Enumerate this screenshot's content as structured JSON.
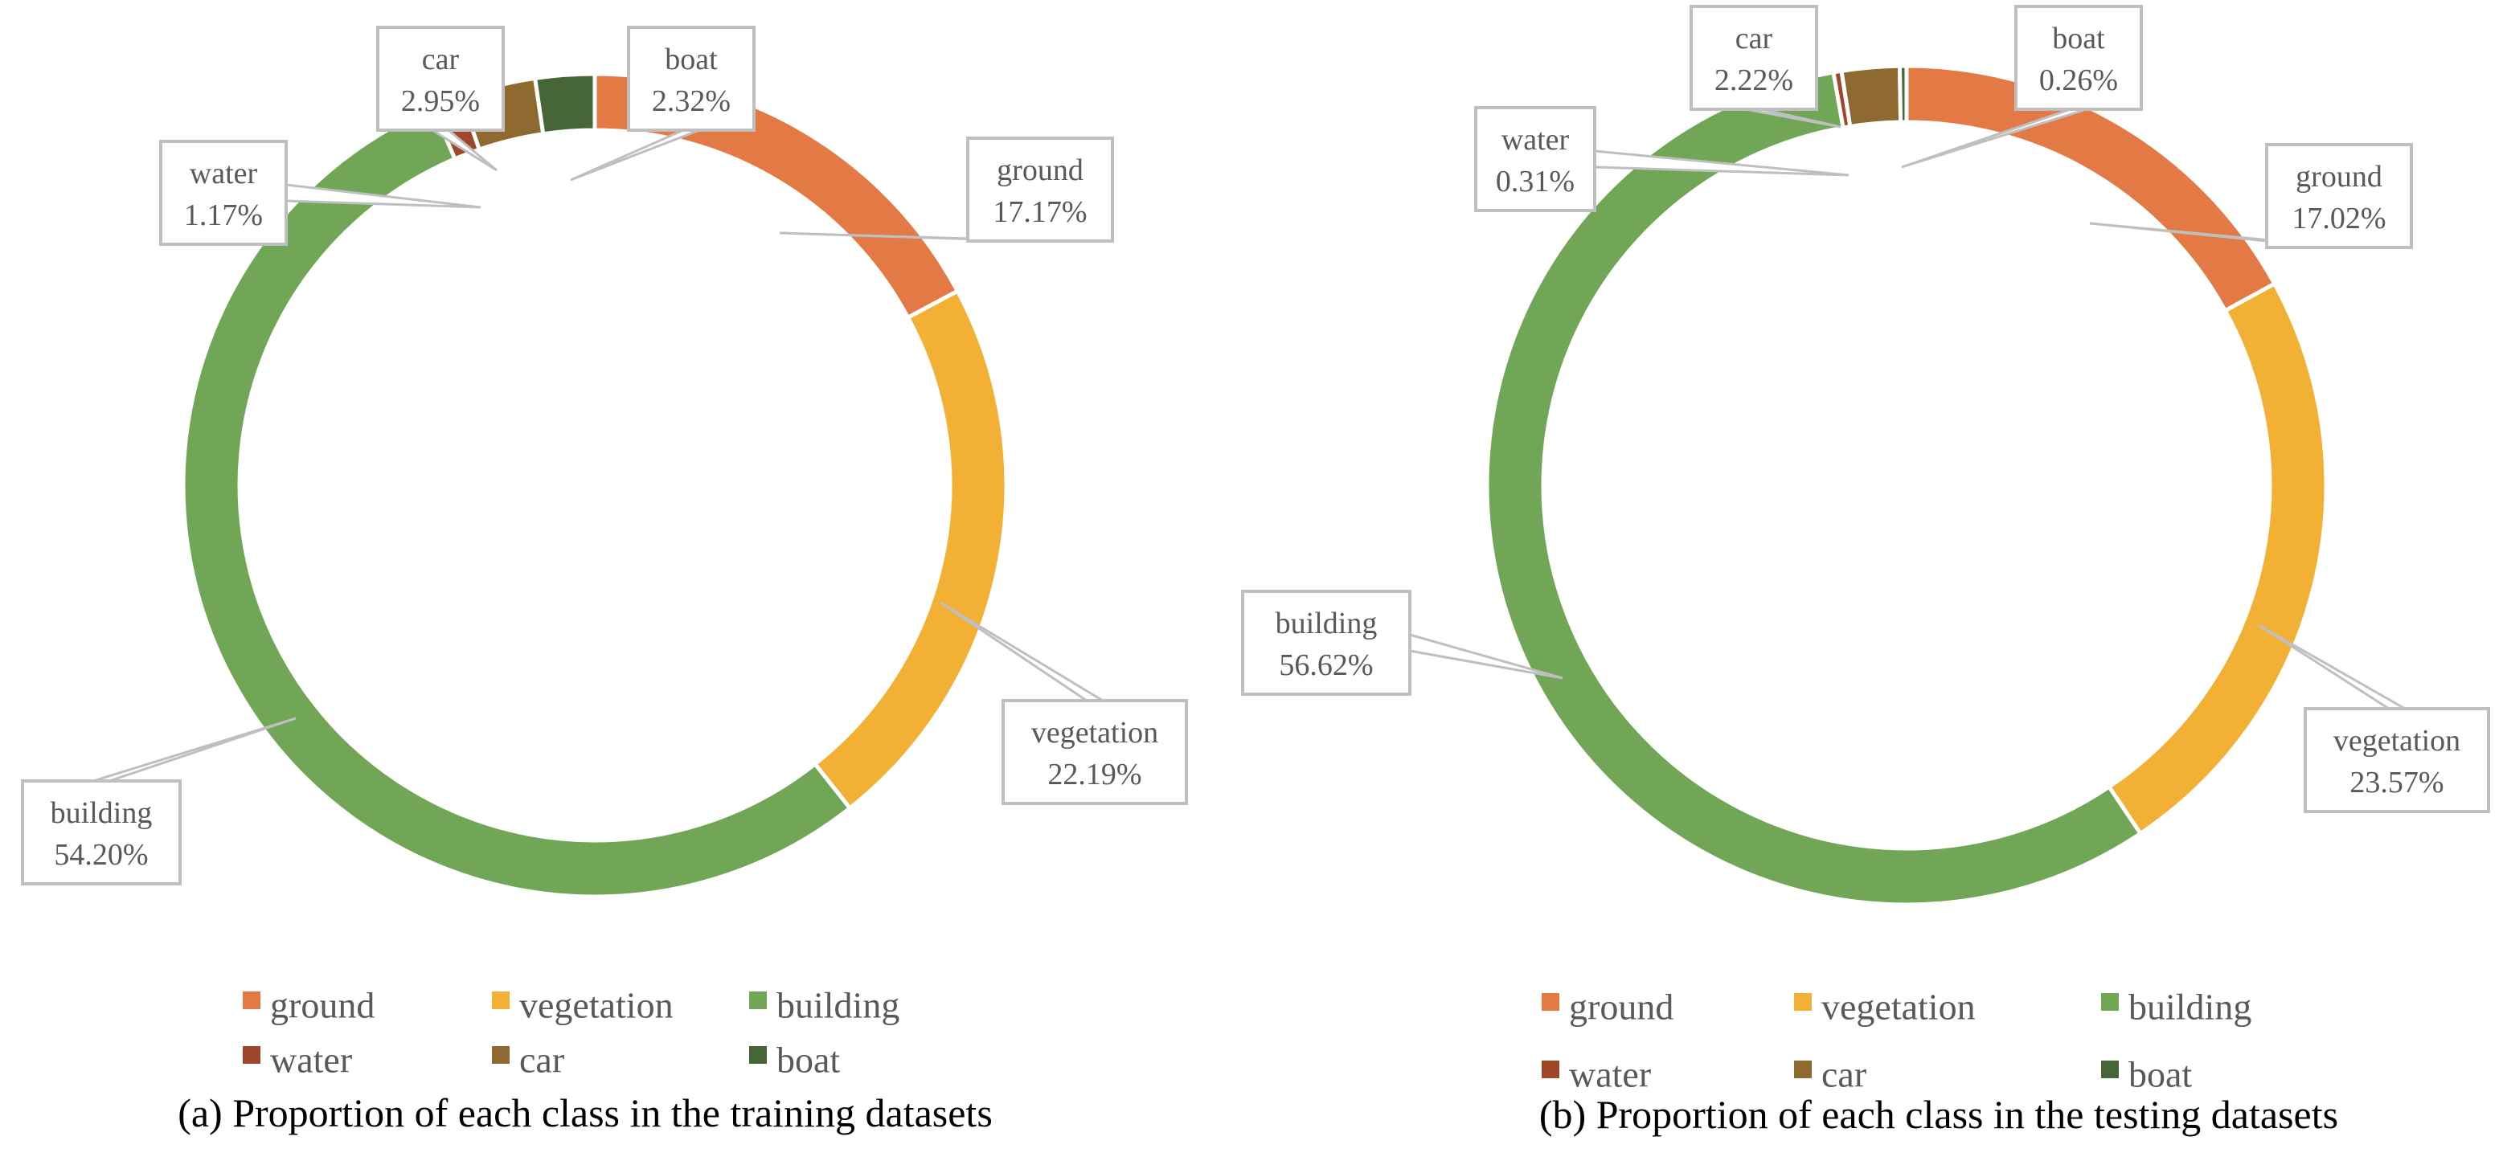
{
  "chart_data": [
    {
      "type": "pie",
      "subtype": "donut",
      "caption": "(a) Proportion of each class in the training datasets",
      "categories": [
        "ground",
        "vegetation",
        "building",
        "water",
        "car",
        "boat"
      ],
      "values": [
        17.17,
        22.19,
        54.2,
        1.17,
        2.95,
        2.32
      ],
      "value_labels": [
        "17.17%",
        "22.19%",
        "54.20%",
        "1.17%",
        "2.95%",
        "2.32%"
      ],
      "legend": [
        "ground",
        "vegetation",
        "building",
        "water",
        "car",
        "boat"
      ],
      "legend_position": "bottom"
    },
    {
      "type": "pie",
      "subtype": "donut",
      "caption": "(b) Proportion of each class in the testing datasets",
      "categories": [
        "ground",
        "vegetation",
        "building",
        "water",
        "car",
        "boat"
      ],
      "values": [
        17.02,
        23.57,
        56.62,
        0.31,
        2.22,
        0.26
      ],
      "value_labels": [
        "17.02%",
        "23.57%",
        "56.62%",
        "0.31%",
        "2.22%",
        "0.26%"
      ],
      "legend": [
        "ground",
        "vegetation",
        "building",
        "water",
        "car",
        "boat"
      ],
      "legend_position": "bottom"
    }
  ],
  "colors": {
    "ground": "#E37A45",
    "vegetation": "#F2B134",
    "building": "#71A656",
    "water": "#A0462B",
    "car": "#8E6A31",
    "boat": "#466637"
  }
}
